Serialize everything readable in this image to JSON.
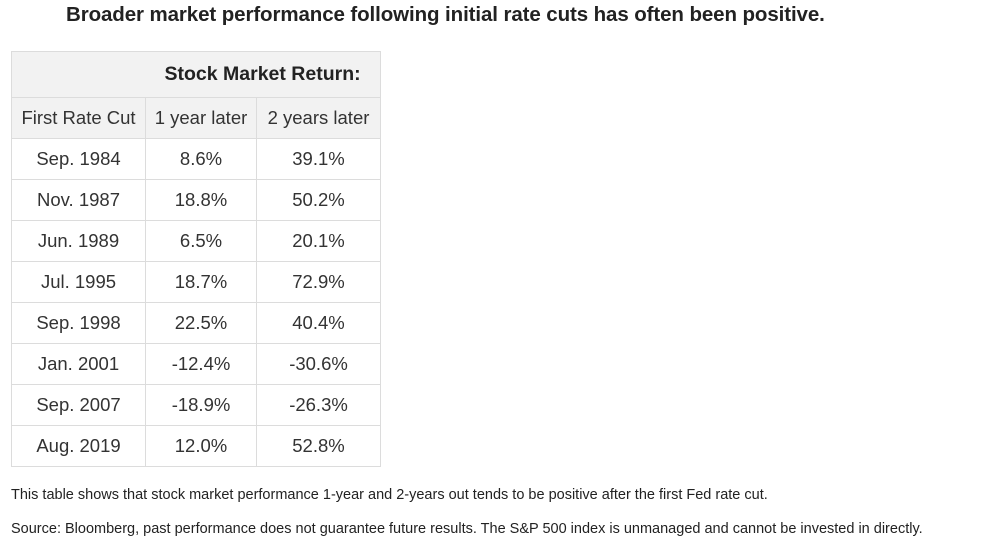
{
  "heading": "Broader market performance following initial rate cuts has often been positive.",
  "table": {
    "group_header": "Stock Market Return:",
    "columns": [
      "First Rate Cut",
      "1 year later",
      "2 years later"
    ],
    "rows": [
      [
        "Sep. 1984",
        "8.6%",
        "39.1%"
      ],
      [
        "Nov. 1987",
        "18.8%",
        "50.2%"
      ],
      [
        "Jun. 1989",
        "6.5%",
        "20.1%"
      ],
      [
        "Jul. 1995",
        "18.7%",
        "72.9%"
      ],
      [
        "Sep. 1998",
        "22.5%",
        "40.4%"
      ],
      [
        "Jan. 2001",
        "-12.4%",
        "-30.6%"
      ],
      [
        "Sep. 2007",
        "-18.9%",
        "-26.3%"
      ],
      [
        "Aug. 2019",
        "12.0%",
        "52.8%"
      ]
    ]
  },
  "notes": {
    "description": "This table shows that stock market performance 1-year and 2-years out tends to be positive after the first Fed rate cut.",
    "source": "Source: Bloomberg, past performance does not guarantee future results. The S&P 500 index is unmanaged and cannot be invested in directly."
  }
}
